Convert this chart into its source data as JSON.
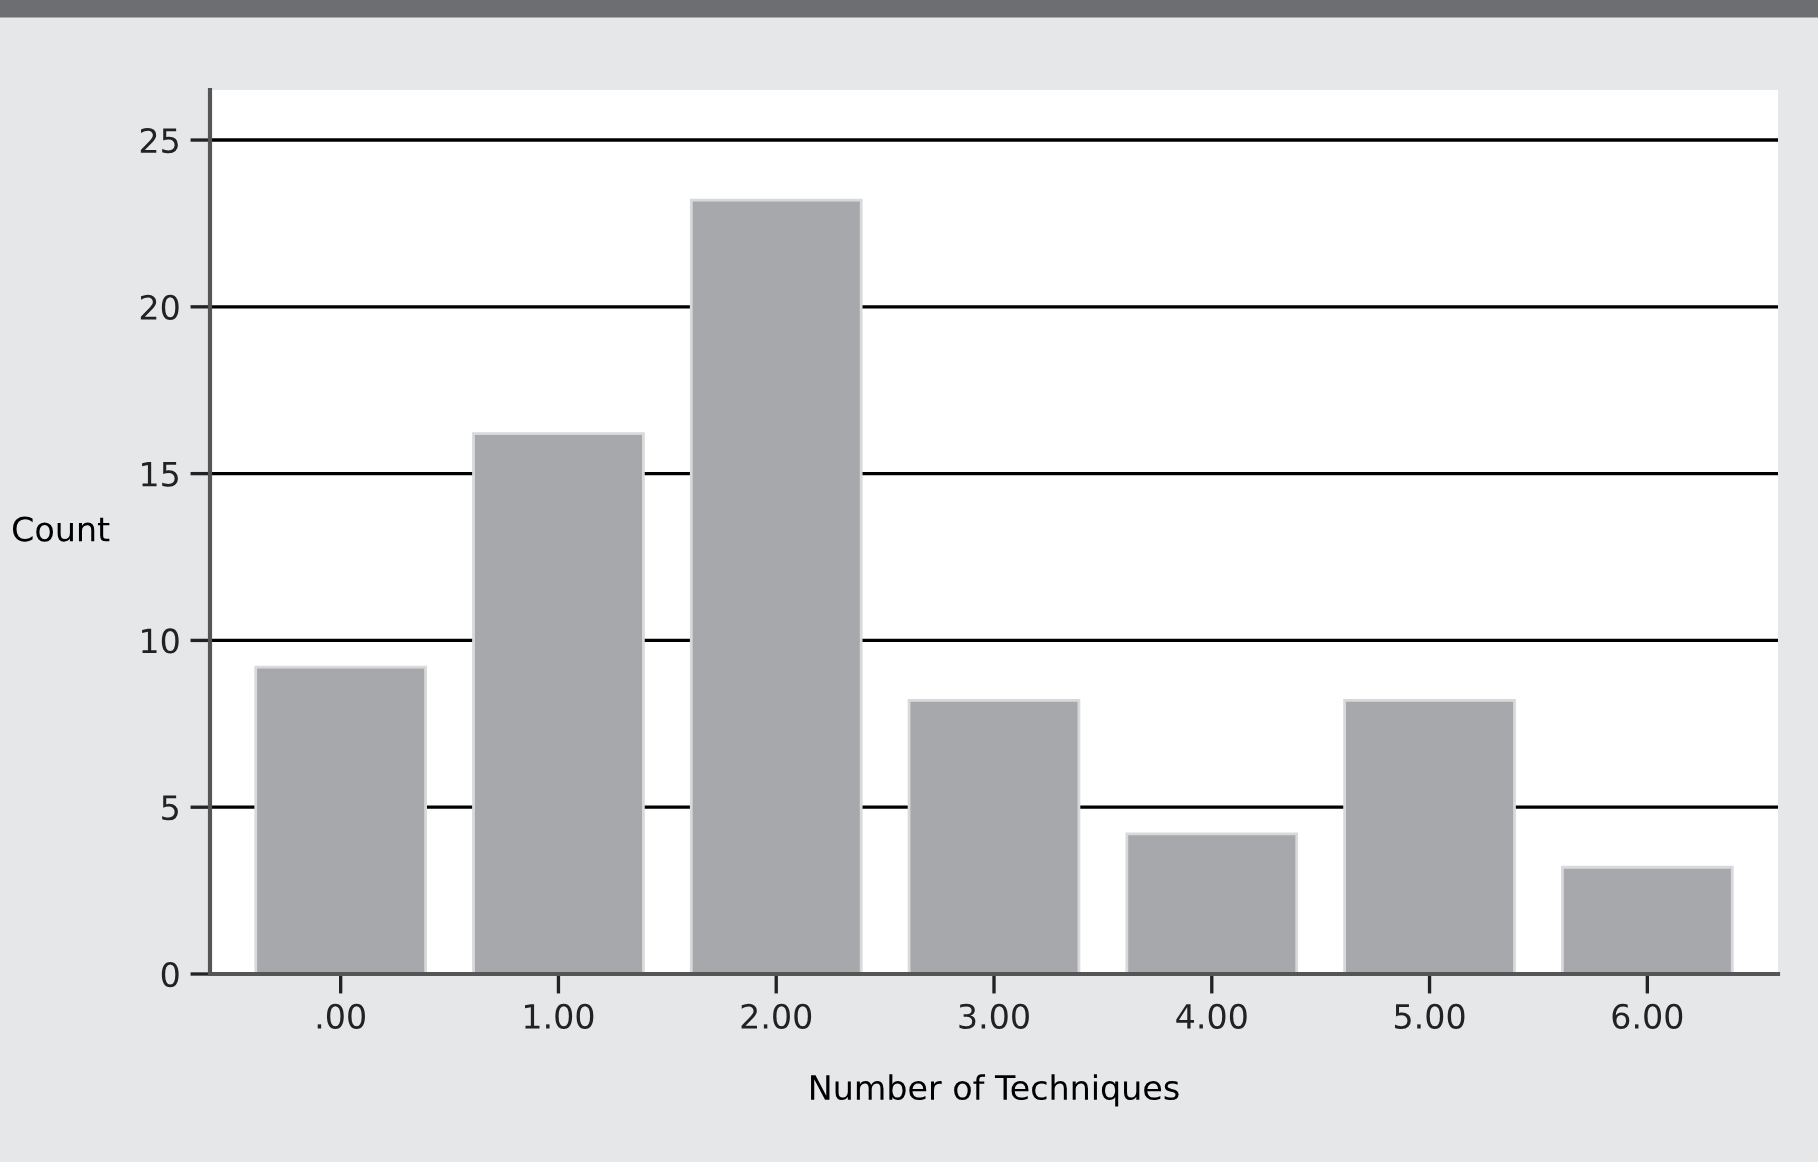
{
  "chart_data": {
    "type": "bar",
    "xlabel": "Number of Techniques",
    "ylabel": "Count",
    "categories": [
      ".00",
      "1.00",
      "2.00",
      "3.00",
      "4.00",
      "5.00",
      "6.00"
    ],
    "values": [
      9.2,
      16.2,
      23.2,
      8.2,
      4.2,
      8.2,
      3.2
    ],
    "color": "#a7a8ab",
    "ylim": [
      0,
      26.5
    ],
    "yticks": [
      0,
      5,
      10,
      15,
      20,
      25
    ],
    "grid": "y"
  }
}
